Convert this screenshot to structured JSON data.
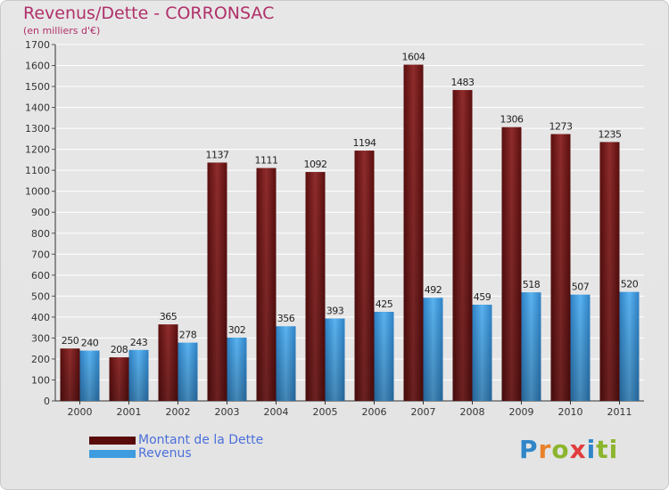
{
  "header": {
    "title": "Revenus/Dette - CORRONSAC",
    "subtitle": "(en milliers d'€)"
  },
  "colors": {
    "debt": "#7a1a1a",
    "revenue": "#3e9be0"
  },
  "legend": {
    "items": [
      {
        "label": "Montant de la Dette",
        "color": "#5a0b0b"
      },
      {
        "label": "Revenus",
        "color": "#3e9be0"
      }
    ]
  },
  "logo": {
    "text": "Proxiti",
    "letters": [
      "P",
      "r",
      "o",
      "x",
      "i",
      "ti"
    ]
  },
  "chart_data": {
    "type": "bar",
    "title": "Revenus/Dette - CORRONSAC",
    "ylabel": "(en milliers d'€)",
    "xlabel": "",
    "categories": [
      "2000",
      "2001",
      "2002",
      "2003",
      "2004",
      "2005",
      "2006",
      "2007",
      "2008",
      "2009",
      "2010",
      "2011"
    ],
    "series": [
      {
        "name": "Montant de la Dette",
        "values": [
          250,
          208,
          365,
          1137,
          1111,
          1092,
          1194,
          1604,
          1483,
          1306,
          1273,
          1235
        ]
      },
      {
        "name": "Revenus",
        "values": [
          240,
          243,
          278,
          302,
          356,
          393,
          425,
          492,
          459,
          518,
          507,
          520
        ]
      }
    ],
    "ylim": [
      0,
      1700
    ],
    "yticks": [
      0,
      100,
      200,
      300,
      400,
      500,
      600,
      700,
      800,
      900,
      1000,
      1100,
      1200,
      1300,
      1400,
      1500,
      1600,
      1700
    ],
    "grid": true,
    "legend": "bottom-left"
  }
}
